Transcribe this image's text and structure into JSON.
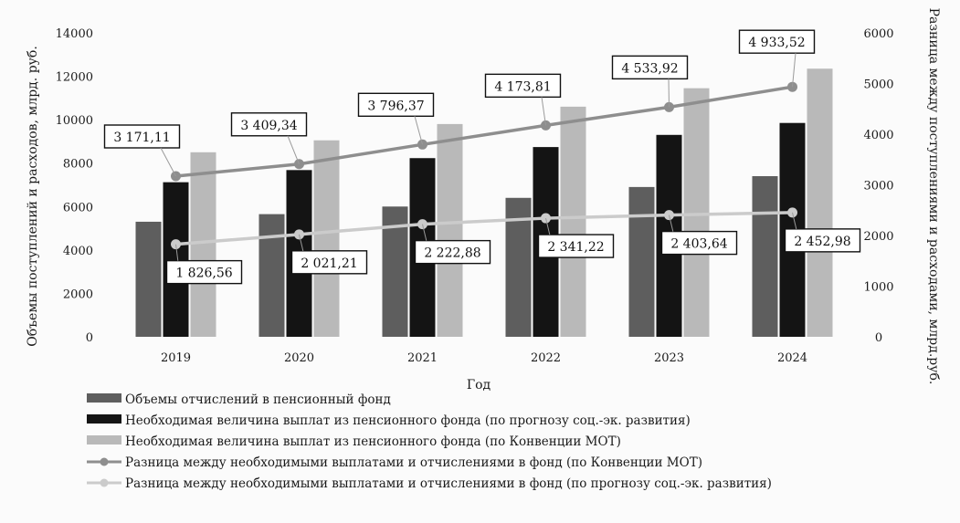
{
  "chart_data": {
    "type": "bar",
    "xlabel": "Год",
    "ylabel": "Объемы поступлений и расходов, млрд. руб.",
    "ylabel_right": "Разница между поступлениями и расходами, млрд.руб.",
    "ylim": [
      0,
      14000
    ],
    "ylim_right": [
      0,
      6000
    ],
    "yticks": [
      "0",
      "2000",
      "4000",
      "6000",
      "8000",
      "10000",
      "12000",
      "14000"
    ],
    "yticks_right": [
      "0",
      "1000",
      "2000",
      "3000",
      "4000",
      "5000",
      "6000"
    ],
    "grid": false,
    "legend_position": "bottom",
    "categories": [
      "2019",
      "2020",
      "2021",
      "2022",
      "2023",
      "2024"
    ],
    "series": [
      {
        "name": "Объемы отчислений в пенсионный фонд",
        "kind": "bar",
        "axis": "left",
        "color": "#5e5e5e",
        "values": [
          5300,
          5650,
          6000,
          6400,
          6900,
          7400
        ]
      },
      {
        "name": "Необходимая величина выплат из пенсионного фонда (по прогнозу соц.-эк. развития)",
        "kind": "bar",
        "axis": "left",
        "color": "#141414",
        "values": [
          7120,
          7680,
          8230,
          8740,
          9300,
          9850
        ]
      },
      {
        "name": "Необходимая величина выплат из пенсионного фонда (по Конвенции МОТ)",
        "kind": "bar",
        "axis": "left",
        "color": "#b9b9b9",
        "values": [
          8500,
          9050,
          9800,
          10600,
          11450,
          12350
        ]
      },
      {
        "name": "Разница  между необходимыми выплатами и отчислениями в фонд (по Конвенции МОТ)",
        "kind": "line",
        "axis": "right",
        "color": "#8e8e8e",
        "values": [
          3171.11,
          3409.34,
          3796.37,
          4173.81,
          4533.92,
          4933.52
        ],
        "labels": [
          "3 171,11",
          "3 409,34",
          "3 796,37",
          "4 173,81",
          "4 533,92",
          "4 933,52"
        ]
      },
      {
        "name": "Разница  между необходимыми выплатами и отчислениями в фонд (по прогнозу соц.-эк. развития)",
        "kind": "line",
        "axis": "right",
        "color": "#cbcbcb",
        "values": [
          1826.56,
          2021.21,
          2222.88,
          2341.22,
          2403.64,
          2452.98
        ],
        "labels": [
          "1 826,56",
          "2 021,21",
          "2 222,88",
          "2 341,22",
          "2 403,64",
          "2 452,98"
        ]
      }
    ]
  }
}
